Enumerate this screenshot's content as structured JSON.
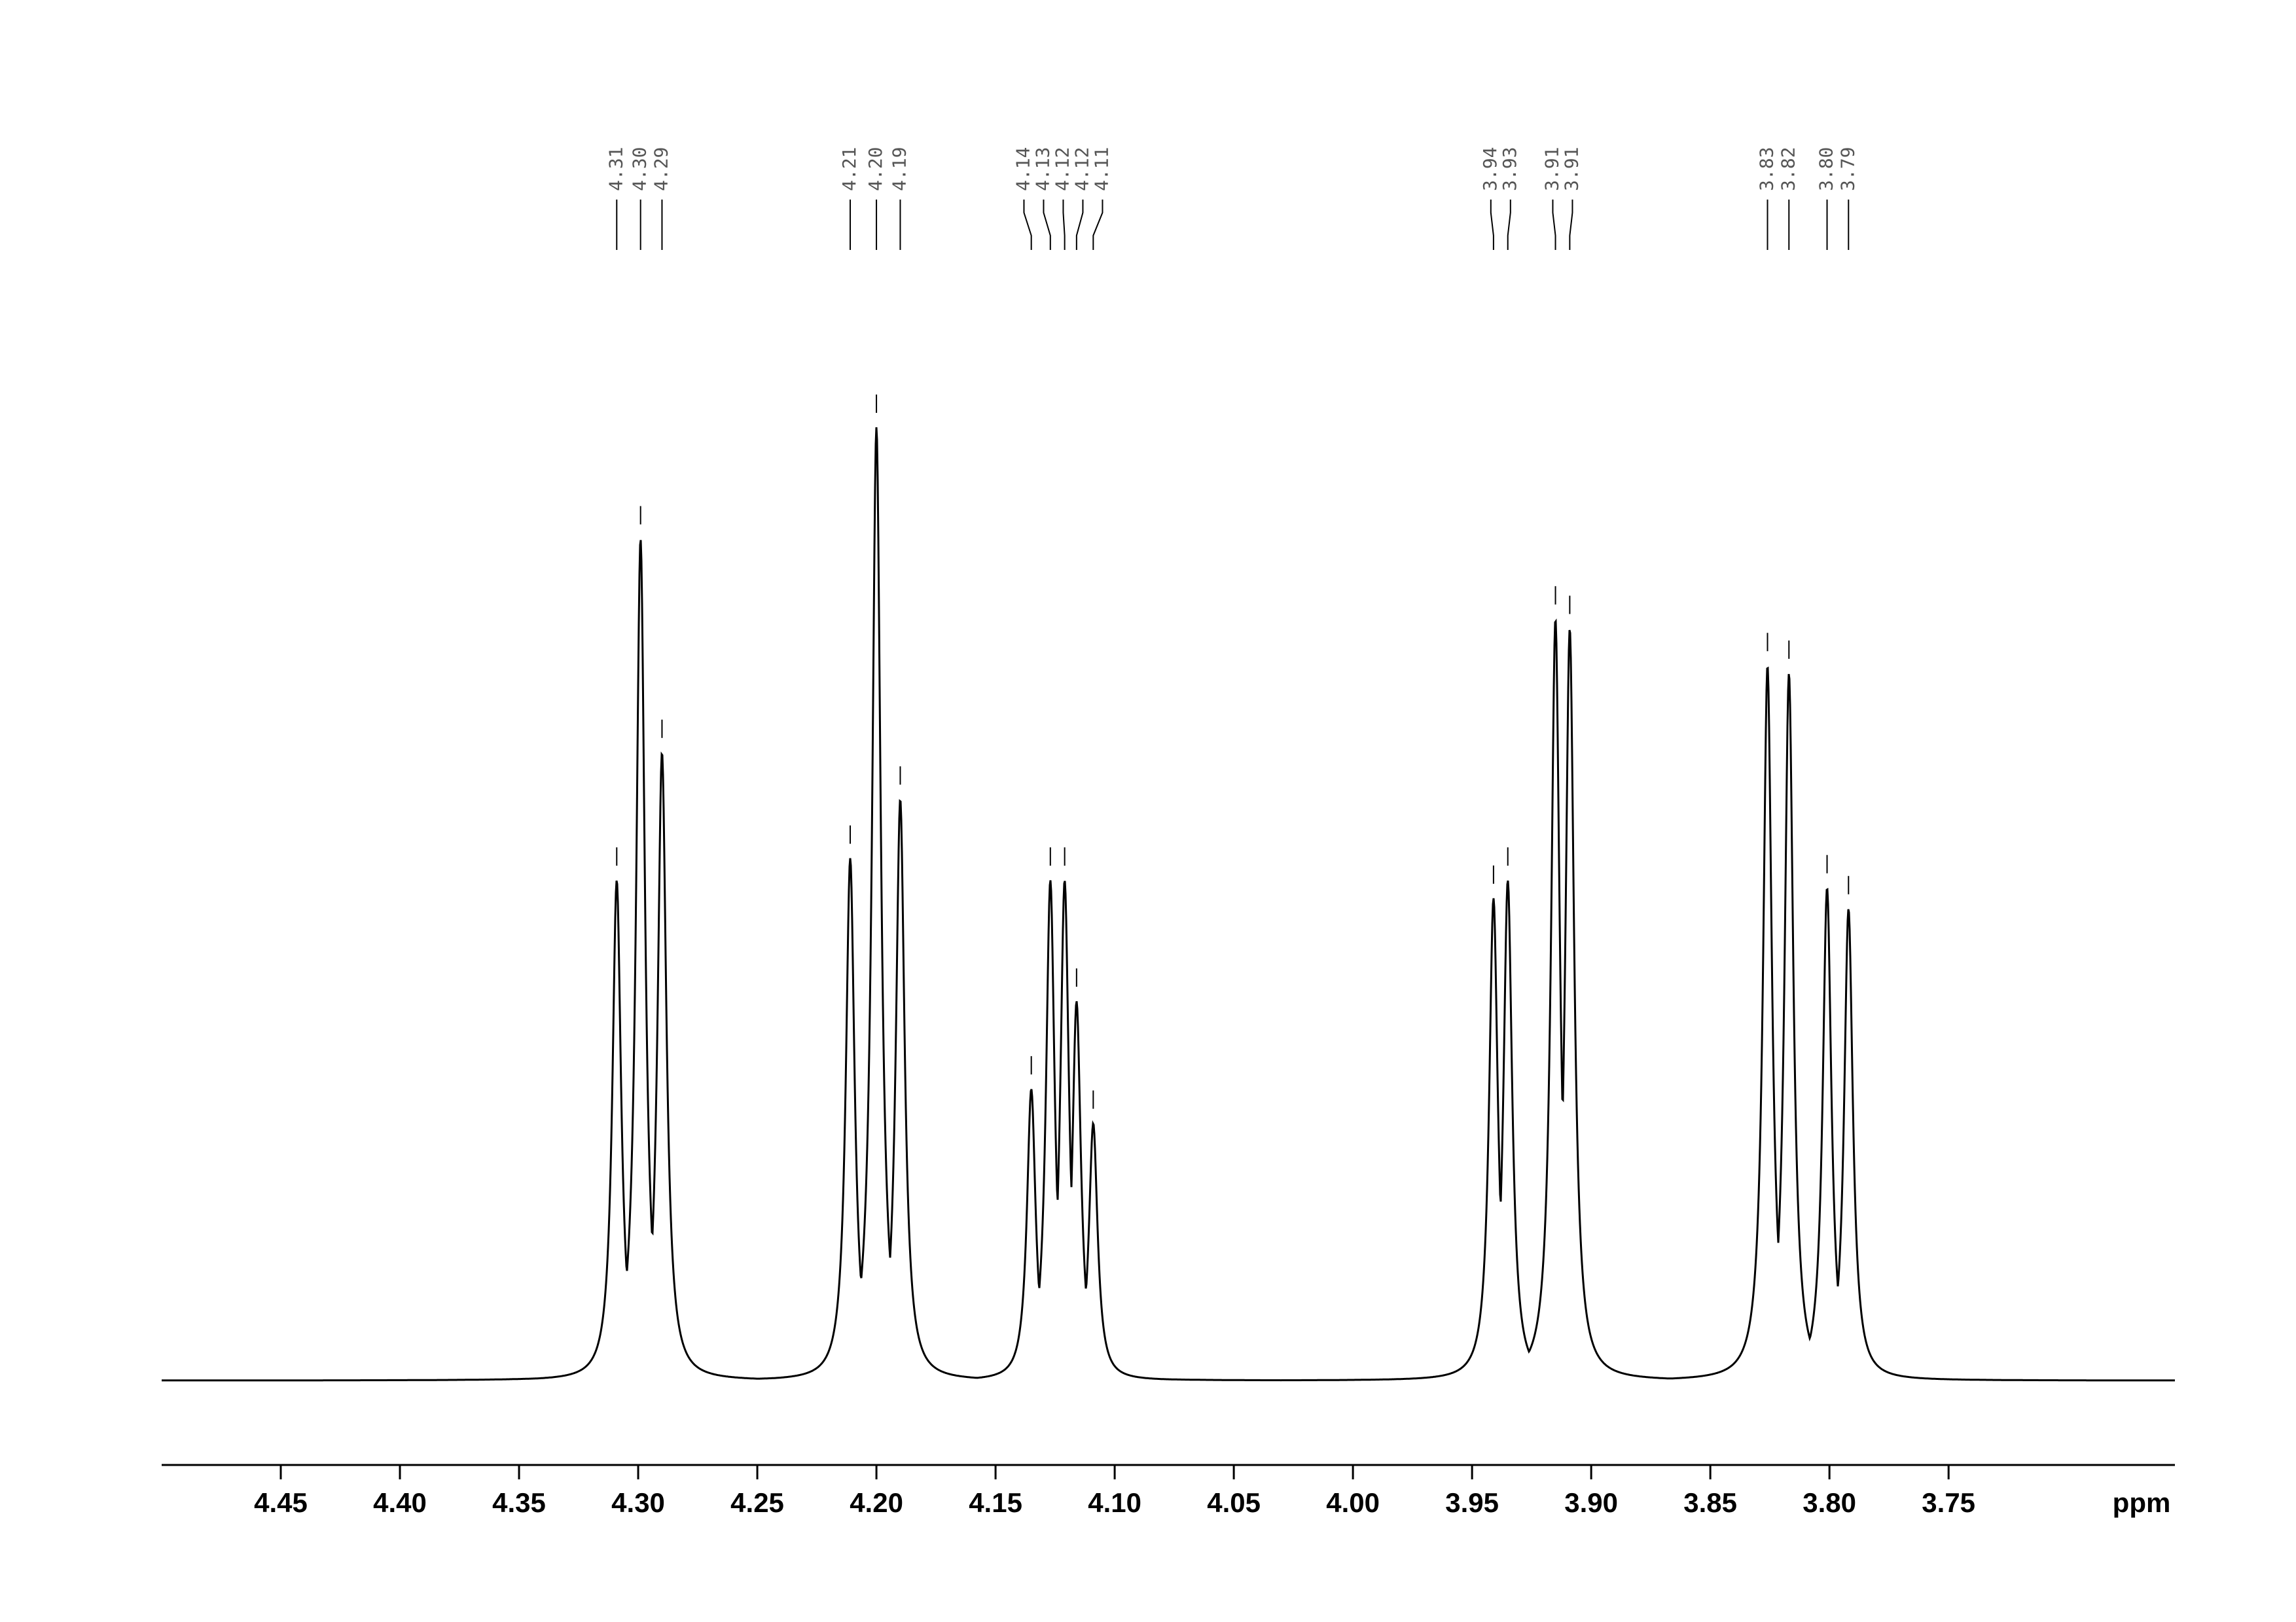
{
  "chart_data": {
    "type": "spectrum",
    "x_label": "ppm",
    "xlim": [
      4.5,
      3.655
    ],
    "xticks": [
      {
        "value": 4.45,
        "label": "4.45"
      },
      {
        "value": 4.4,
        "label": "4.40"
      },
      {
        "value": 4.35,
        "label": "4.35"
      },
      {
        "value": 4.3,
        "label": "4.30"
      },
      {
        "value": 4.25,
        "label": "4.25"
      },
      {
        "value": 4.2,
        "label": "4.20"
      },
      {
        "value": 4.15,
        "label": "4.15"
      },
      {
        "value": 4.1,
        "label": "4.10"
      },
      {
        "value": 4.05,
        "label": "4.05"
      },
      {
        "value": 4.0,
        "label": "4.00"
      },
      {
        "value": 3.95,
        "label": "3.95"
      },
      {
        "value": 3.9,
        "label": "3.90"
      },
      {
        "value": 3.85,
        "label": "3.85"
      },
      {
        "value": 3.8,
        "label": "3.80"
      },
      {
        "value": 3.75,
        "label": "3.75"
      }
    ],
    "ylim": [
      0,
      100
    ],
    "color": "#000000",
    "peak_labels": [
      {
        "value": 4.309,
        "label": "4.31"
      },
      {
        "value": 4.299,
        "label": "4.30"
      },
      {
        "value": 4.29,
        "label": "4.29"
      },
      {
        "value": 4.211,
        "label": "4.21"
      },
      {
        "value": 4.2,
        "label": "4.20"
      },
      {
        "value": 4.19,
        "label": "4.19"
      },
      {
        "value": 4.135,
        "label": "4.14"
      },
      {
        "value": 4.127,
        "label": "4.13"
      },
      {
        "value": 4.121,
        "label": "4.12"
      },
      {
        "value": 4.116,
        "label": "4.12"
      },
      {
        "value": 4.109,
        "label": "4.11"
      },
      {
        "value": 3.941,
        "label": "3.94"
      },
      {
        "value": 3.935,
        "label": "3.93"
      },
      {
        "value": 3.915,
        "label": "3.91"
      },
      {
        "value": 3.909,
        "label": "3.91"
      },
      {
        "value": 3.826,
        "label": "3.83"
      },
      {
        "value": 3.817,
        "label": "3.82"
      },
      {
        "value": 3.801,
        "label": "3.80"
      },
      {
        "value": 3.792,
        "label": "3.79"
      }
    ],
    "peak_heights": [
      52.5,
      88.3,
      65.9,
      54.8,
      100,
      61,
      30.6,
      52.5,
      52.5,
      39.8,
      27,
      50.6,
      52.5,
      79.9,
      78.9,
      75,
      74.2,
      51.7,
      49.5
    ]
  }
}
